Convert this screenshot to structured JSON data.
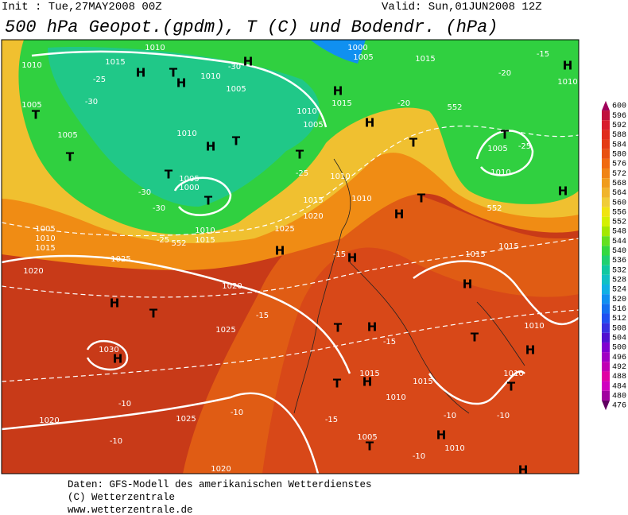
{
  "header": {
    "init": "Init : Tue,27MAY2008 00Z",
    "valid": "Valid: Sun,01JUN2008 12Z",
    "title": "500 hPa Geopot.(gpdm), T (C) und Bodendr. (hPa)"
  },
  "colorbar": {
    "levels": [
      600,
      596,
      592,
      588,
      584,
      580,
      576,
      572,
      568,
      564,
      560,
      556,
      552,
      548,
      544,
      540,
      536,
      532,
      528,
      524,
      520,
      516,
      512,
      508,
      504,
      500,
      496,
      492,
      488,
      484,
      480,
      476
    ],
    "colors": [
      "#a0005a",
      "#c0103c",
      "#d81c2c",
      "#e02c1c",
      "#e43c14",
      "#e85010",
      "#f06a10",
      "#f08414",
      "#f09c1c",
      "#f0b42c",
      "#f0cc38",
      "#f0e410",
      "#d4f000",
      "#a4e800",
      "#64e020",
      "#34d840",
      "#20d070",
      "#10c8a0",
      "#10c0c4",
      "#10b0e4",
      "#1090f0",
      "#1470f0",
      "#2050f0",
      "#3830e0",
      "#5010d0",
      "#8000d0",
      "#a000c4",
      "#c000b4",
      "#e000a4",
      "#d000c0",
      "#a000a0",
      "#600060"
    ]
  },
  "map_labels": [
    "1010",
    "1015",
    "1010",
    "H",
    "T",
    "H",
    "-25",
    "-30",
    "1005",
    "T",
    "1005",
    "T",
    "1010",
    "H",
    "T",
    "T",
    "1005",
    "1000",
    "T",
    "-30",
    "-30",
    "1005",
    "1010",
    "1015",
    "1025",
    "1020",
    "1010",
    "1015",
    "-25",
    "1005",
    "H",
    "-30",
    "1010",
    "1000",
    "1005",
    "1015",
    "H",
    "1015",
    "1010",
    "1005",
    "T",
    "-25",
    "H",
    "T",
    "-20",
    "1010",
    "1015",
    "1020",
    "1010",
    "H",
    "T",
    "1025",
    "H",
    "-15",
    "H",
    "1020",
    "H",
    "T",
    "1025",
    "-15",
    "1030",
    "H",
    "T",
    "H",
    "-15",
    "1015",
    "T",
    "H",
    "1010",
    "1015",
    "1020",
    "1025",
    "-10",
    "-10",
    "-10",
    "-15",
    "1005",
    "T",
    "1010",
    "H",
    "-10",
    "1020",
    "H",
    "H",
    "1010",
    "T",
    "1005",
    "-25",
    "1010",
    "H",
    "-15",
    "-20",
    "1015",
    "1015",
    "H",
    "1010",
    "H",
    "T",
    "1010",
    "T",
    "-10",
    "-10",
    "552",
    "552",
    "552"
  ],
  "footer": [
    "Daten: GFS-Modell des amerikanischen Wetterdienstes",
    "(C) Wetterzentrale",
    "www.wetterzentrale.de"
  ]
}
